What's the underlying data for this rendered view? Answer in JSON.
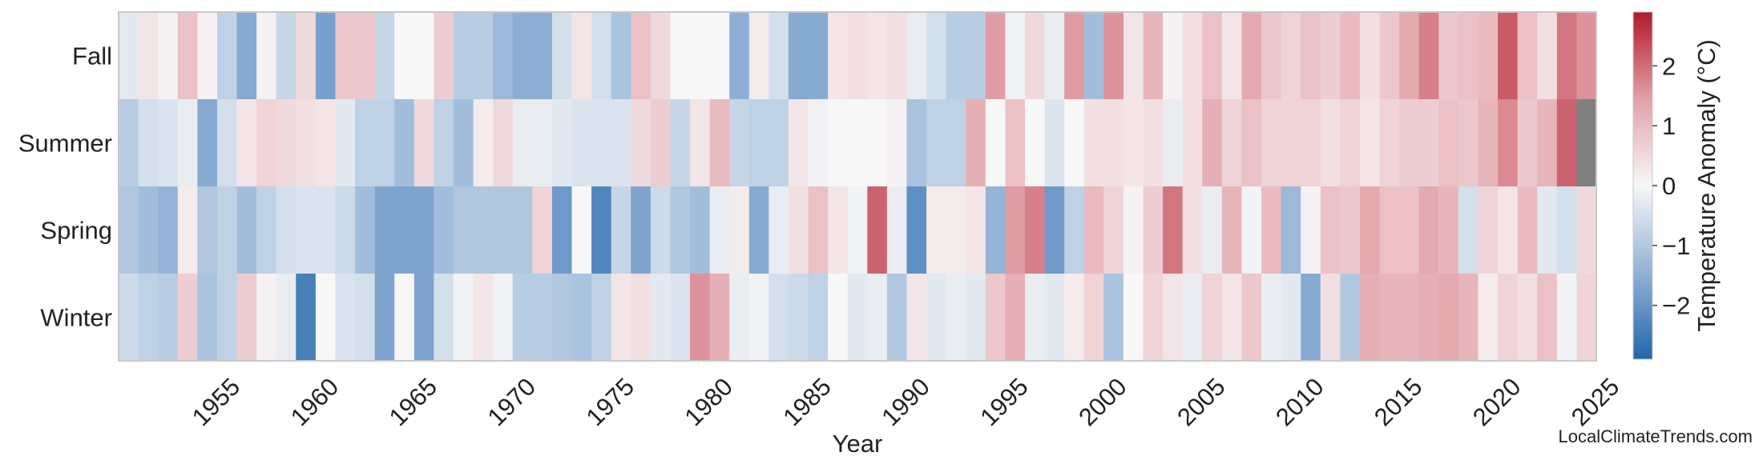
{
  "chart_data": {
    "type": "heatmap",
    "xlabel": "Year",
    "colorbar_label": "Temperature Anomaly (°C)",
    "colorbar_ticks": [
      -2,
      -1,
      0,
      1,
      2
    ],
    "colorbar_range": [
      -2.9,
      2.9
    ],
    "x_tick_labels": [
      "1955",
      "1960",
      "1965",
      "1970",
      "1975",
      "1980",
      "1985",
      "1990",
      "1995",
      "2000",
      "2005",
      "2010",
      "2015",
      "2020",
      "2025"
    ],
    "rows": [
      "Fall",
      "Summer",
      "Spring",
      "Winter"
    ],
    "year_start": 1950,
    "year_end": 2024,
    "values": {
      "Fall": [
        -0.3,
        0.3,
        0.1,
        0.9,
        0.1,
        -0.8,
        -1.6,
        0.1,
        -0.7,
        0.5,
        -1.8,
        0.8,
        0.8,
        -0.7,
        0.0,
        0.0,
        0.7,
        -0.9,
        -0.9,
        -1.3,
        -1.5,
        -1.5,
        -0.5,
        0.3,
        -0.5,
        -1.1,
        0.9,
        0.5,
        0.0,
        0.0,
        0.0,
        -1.5,
        0.2,
        -0.5,
        -1.6,
        -1.6,
        0.3,
        0.4,
        0.3,
        0.4,
        -0.2,
        -0.5,
        -0.9,
        -0.9,
        1.5,
        -0.1,
        0.5,
        -0.2,
        1.5,
        -1.2,
        1.6,
        0.3,
        1.1,
        0.1,
        0.4,
        0.9,
        0.3,
        1.3,
        0.8,
        0.6,
        0.9,
        0.7,
        1.0,
        0.4,
        0.8,
        1.3,
        1.8,
        0.8,
        0.9,
        1.0,
        2.2,
        0.9,
        0.4,
        1.9,
        1.6
      ],
      "Summer": [
        -0.9,
        -0.5,
        -0.4,
        -0.2,
        -1.6,
        -0.5,
        0.3,
        0.6,
        0.5,
        0.4,
        0.3,
        -0.3,
        -0.8,
        -0.8,
        -1.2,
        0.5,
        -0.8,
        -1.2,
        0.2,
        0.5,
        -0.2,
        -0.2,
        -0.3,
        -0.4,
        -0.4,
        -0.4,
        0.5,
        0.7,
        -0.7,
        0.3,
        1.0,
        -0.7,
        -0.8,
        -0.8,
        0.3,
        -0.1,
        0.0,
        0.0,
        0.0,
        0.1,
        -1.1,
        -0.8,
        -0.8,
        1.2,
        0.0,
        0.9,
        0.0,
        -0.4,
        0.0,
        0.4,
        0.4,
        0.3,
        0.4,
        -0.2,
        0.4,
        1.2,
        0.6,
        0.9,
        0.6,
        0.6,
        0.6,
        0.4,
        0.6,
        0.3,
        0.6,
        0.7,
        0.7,
        0.9,
        0.8,
        1.1,
        1.7,
        0.8,
        1.1,
        2.1,
        null
      ],
      "Spring": [
        -1.0,
        -1.2,
        -1.4,
        0.2,
        -1.0,
        -0.8,
        -1.2,
        -0.8,
        -0.5,
        -0.4,
        -0.4,
        -0.6,
        -1.2,
        -1.7,
        -1.7,
        -1.7,
        -1.2,
        -1.0,
        -1.0,
        -1.0,
        -1.0,
        0.6,
        -1.9,
        0.0,
        -2.3,
        -0.7,
        -1.7,
        -0.6,
        -1.0,
        -1.2,
        -0.2,
        0.2,
        -1.6,
        -0.2,
        0.4,
        0.9,
        0.3,
        -0.1,
        2.1,
        -0.2,
        -2.1,
        0.2,
        0.2,
        0.3,
        -1.4,
        1.5,
        1.8,
        -1.9,
        -0.8,
        1.0,
        0.6,
        0.1,
        0.7,
        1.9,
        0.4,
        -0.2,
        1.1,
        -0.1,
        1.0,
        -1.3,
        0.1,
        0.9,
        0.8,
        1.3,
        0.9,
        0.9,
        1.3,
        1.1,
        -0.5,
        0.6,
        0.3,
        1.0,
        -0.3,
        -0.5,
        0.5
      ],
      "Winter": [
        -0.6,
        -0.8,
        -0.9,
        0.7,
        -1.1,
        -0.8,
        0.7,
        0.1,
        -0.2,
        -2.4,
        0.0,
        -0.4,
        -0.5,
        -1.7,
        0.0,
        -1.7,
        -0.5,
        -0.1,
        0.3,
        -0.1,
        -0.9,
        -0.9,
        -1.0,
        -1.1,
        -0.8,
        0.3,
        0.4,
        -0.3,
        -0.4,
        1.6,
        1.2,
        -0.2,
        -0.1,
        -0.5,
        -0.6,
        -0.8,
        0.0,
        -0.3,
        -0.2,
        -1.0,
        0.3,
        -0.3,
        -0.2,
        -0.3,
        0.8,
        1.2,
        -0.2,
        -0.3,
        0.2,
        0.6,
        -1.1,
        0.0,
        0.6,
        0.3,
        -0.2,
        0.6,
        0.3,
        0.8,
        -0.2,
        -0.3,
        -1.6,
        0.4,
        -1.0,
        1.2,
        1.1,
        1.1,
        1.2,
        1.3,
        1.1,
        0.2,
        0.6,
        0.4,
        0.9,
        -0.1,
        0.6
      ]
    }
  },
  "watermark": "LocalClimateTrends.com"
}
